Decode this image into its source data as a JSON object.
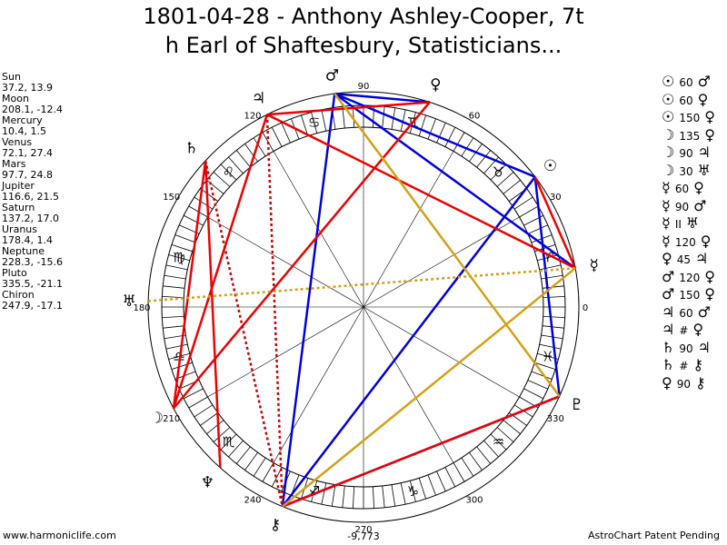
{
  "title": [
    "1801-04-28 - Anthony Ashley-Cooper, 7t",
    "h Earl of Shaftesbury, Statisticians..."
  ],
  "planets": [
    {
      "name": "Sun",
      "glyph": "☉",
      "position": "37.2, 13.9"
    },
    {
      "name": "Moon",
      "glyph": "☽",
      "position": "208.1, -12.4"
    },
    {
      "name": "Mercury",
      "glyph": "☿",
      "position": "10.4, 1.5"
    },
    {
      "name": "Venus",
      "glyph": "♀",
      "position": "72.1, 27.4"
    },
    {
      "name": "Mars",
      "glyph": "♂",
      "position": "97.7, 24.8"
    },
    {
      "name": "Jupiter",
      "glyph": "♃",
      "position": "116.6, 21.5"
    },
    {
      "name": "Saturn",
      "glyph": "♄",
      "position": "137.2, 17.0"
    },
    {
      "name": "Uranus",
      "glyph": "♅",
      "position": "178.4, 1.4"
    },
    {
      "name": "Neptune",
      "glyph": "♆",
      "position": "228.3, -15.6"
    },
    {
      "name": "Pluto",
      "glyph": "♇",
      "position": "335.5, -21.1"
    },
    {
      "name": "Chiron",
      "glyph": "⚷",
      "position": "247.9, -17.1"
    }
  ],
  "aspects": [
    [
      "☉",
      "60",
      "♂"
    ],
    [
      "☉",
      "60",
      "♀"
    ],
    [
      "☉",
      "150",
      "♀"
    ],
    [
      "☽",
      "135",
      "♀"
    ],
    [
      "☽",
      "90",
      "♃"
    ],
    [
      "☽",
      "30",
      "♅"
    ],
    [
      "☿",
      "60",
      "♀"
    ],
    [
      "☿",
      "90",
      "♂"
    ],
    [
      "☿",
      "II",
      "♅"
    ],
    [
      "☿",
      "120",
      "♀"
    ],
    [
      "♀",
      "45",
      "♃"
    ],
    [
      "♂",
      "120",
      "♀"
    ],
    [
      "♂",
      "150",
      "♀"
    ],
    [
      "♃",
      "60",
      "♂"
    ],
    [
      "♃",
      "#",
      "♀"
    ],
    [
      "♄",
      "90",
      "♃"
    ],
    [
      "♄",
      "#",
      "⚷"
    ],
    [
      "♀",
      "90",
      "⚷"
    ]
  ],
  "wheel": {
    "degree_labels": [
      "0",
      "30",
      "60",
      "90",
      "120",
      "150",
      "180",
      "210",
      "240",
      "270",
      "300",
      "330"
    ],
    "signs": [
      "♈",
      "♉",
      "♊",
      "♋",
      "♌",
      "♍",
      "♎",
      "♏",
      "♐",
      "♑",
      "♒",
      "♓"
    ],
    "score": "-9,773"
  },
  "footer": {
    "left": "www.harmoniclife.com",
    "right": "AstroChart Patent Pending"
  }
}
